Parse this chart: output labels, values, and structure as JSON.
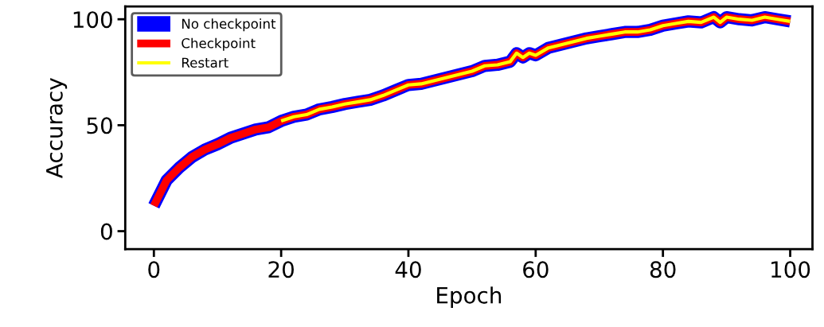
{
  "chart_data": {
    "type": "line",
    "xlabel": "Epoch",
    "ylabel": "Accuracy",
    "xlim": [
      -4.5,
      103.5
    ],
    "ylim": [
      -8.5,
      106
    ],
    "xticks": [
      0,
      20,
      40,
      60,
      80,
      100
    ],
    "yticks": [
      0,
      50,
      100
    ],
    "legend": "top left",
    "grid": false,
    "series": [
      {
        "name": "No checkpoint",
        "color": "#0000ff",
        "x": [
          0,
          2,
          4,
          6,
          8,
          10,
          12,
          14,
          16,
          18,
          20,
          22,
          24,
          26,
          28,
          30,
          32,
          34,
          36,
          38,
          40,
          42,
          44,
          46,
          48,
          50,
          52,
          54,
          56,
          57,
          58,
          59,
          60,
          62,
          64,
          66,
          68,
          70,
          72,
          74,
          76,
          78,
          80,
          82,
          84,
          86,
          88,
          89,
          90,
          92,
          94,
          96,
          98,
          100
        ],
        "values": [
          12,
          24,
          30,
          35,
          38.5,
          41,
          44,
          46,
          48,
          49,
          52,
          54,
          55,
          57.5,
          58.6,
          60,
          61,
          62,
          64,
          66.5,
          69,
          69.5,
          71,
          72.5,
          74,
          75.5,
          78,
          78.5,
          80,
          84,
          82,
          84,
          83,
          86.5,
          88,
          89.5,
          91,
          92,
          93,
          94,
          94,
          95,
          97,
          98,
          99,
          98.5,
          101,
          98.5,
          101,
          100,
          99.5,
          101,
          100,
          99
        ]
      },
      {
        "name": "Checkpoint",
        "color": "#ff0000",
        "x": [
          0,
          2,
          4,
          6,
          8,
          10,
          12,
          14,
          16,
          18,
          20,
          22,
          24,
          26,
          28,
          30,
          32,
          34,
          36,
          38,
          40,
          42,
          44,
          46,
          48,
          50,
          52,
          54,
          56,
          57,
          58,
          59,
          60,
          62,
          64,
          66,
          68,
          70,
          72,
          74,
          76,
          78,
          80,
          82,
          84,
          86,
          88,
          89,
          90,
          92,
          94,
          96,
          98,
          100
        ],
        "values": [
          12,
          24,
          30,
          35,
          38.5,
          41,
          44,
          46,
          48,
          49,
          52,
          54,
          55,
          57.5,
          58.6,
          60,
          61,
          62,
          64,
          66.5,
          69,
          69.5,
          71,
          72.5,
          74,
          75.5,
          78,
          78.5,
          80,
          84,
          82,
          84,
          83,
          86.5,
          88,
          89.5,
          91,
          92,
          93,
          94,
          94,
          95,
          97,
          98,
          99,
          98.5,
          101,
          98.5,
          101,
          100,
          99.5,
          101,
          100,
          99
        ]
      },
      {
        "name": "Restart",
        "color": "#ffff00",
        "x": [
          20,
          22,
          24,
          26,
          28,
          30,
          32,
          34,
          36,
          38,
          40,
          42,
          44,
          46,
          48,
          50,
          52,
          54,
          56,
          57,
          58,
          59,
          60,
          62,
          64,
          66,
          68,
          70,
          72,
          74,
          76,
          78,
          80,
          82,
          84,
          86,
          88,
          89,
          90,
          92,
          94,
          96,
          98,
          100
        ],
        "values": [
          52,
          54,
          55,
          57.5,
          58.6,
          60,
          61,
          62,
          64,
          66.5,
          69,
          69.5,
          71,
          72.5,
          74,
          75.5,
          78,
          78.5,
          80,
          84,
          82,
          84,
          83,
          86.5,
          88,
          89.5,
          91,
          92,
          93,
          94,
          94,
          95,
          97,
          98,
          99,
          98.5,
          101,
          98.5,
          101,
          100,
          99.5,
          101,
          100,
          99
        ]
      }
    ]
  }
}
